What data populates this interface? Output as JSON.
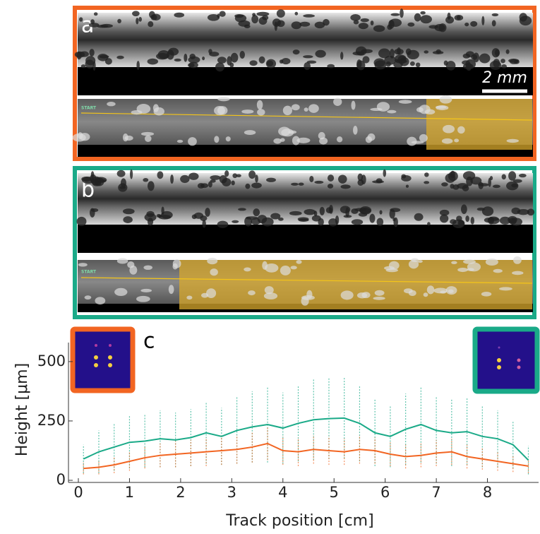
{
  "panels": [
    {
      "label": "a",
      "scale_bar": "2 mm",
      "start": "START"
    },
    {
      "label": "b",
      "start": "START"
    }
  ],
  "chart_data": {
    "type": "line",
    "panel_label": "c",
    "xlabel": "Track position [cm]",
    "ylabel": "Height [μm]",
    "x": [
      0.1,
      0.4,
      0.7,
      1.0,
      1.3,
      1.6,
      1.9,
      2.2,
      2.5,
      2.8,
      3.1,
      3.4,
      3.7,
      4.0,
      4.3,
      4.6,
      4.9,
      5.2,
      5.5,
      5.8,
      6.1,
      6.4,
      6.7,
      7.0,
      7.3,
      7.6,
      7.9,
      8.2,
      8.5,
      8.8
    ],
    "series": [
      {
        "name": "b",
        "color": "#1aaa88",
        "values": [
          90,
          120,
          140,
          160,
          165,
          175,
          170,
          180,
          200,
          185,
          210,
          225,
          235,
          220,
          240,
          255,
          260,
          262,
          240,
          200,
          185,
          215,
          235,
          210,
          200,
          205,
          185,
          175,
          150,
          85
        ],
        "errors": [
          60,
          90,
          100,
          110,
          110,
          120,
          115,
          120,
          130,
          120,
          140,
          150,
          160,
          150,
          160,
          170,
          170,
          170,
          160,
          140,
          130,
          150,
          160,
          140,
          140,
          140,
          130,
          120,
          100,
          60
        ]
      },
      {
        "name": "a",
        "color": "#f26522",
        "values": [
          50,
          55,
          65,
          80,
          95,
          105,
          110,
          115,
          120,
          125,
          130,
          140,
          155,
          125,
          120,
          130,
          125,
          120,
          130,
          125,
          110,
          100,
          105,
          115,
          120,
          100,
          90,
          80,
          70,
          60
        ],
        "errors": [
          25,
          30,
          35,
          40,
          45,
          50,
          55,
          55,
          60,
          60,
          60,
          65,
          70,
          60,
          60,
          60,
          60,
          55,
          60,
          55,
          50,
          50,
          50,
          55,
          55,
          50,
          45,
          40,
          35,
          30
        ]
      }
    ],
    "xlim": [
      0,
      9
    ],
    "ylim": [
      0,
      580
    ],
    "xticks": [
      0,
      1,
      2,
      3,
      4,
      5,
      6,
      7,
      8
    ],
    "yticks": [
      0,
      250,
      500
    ]
  }
}
